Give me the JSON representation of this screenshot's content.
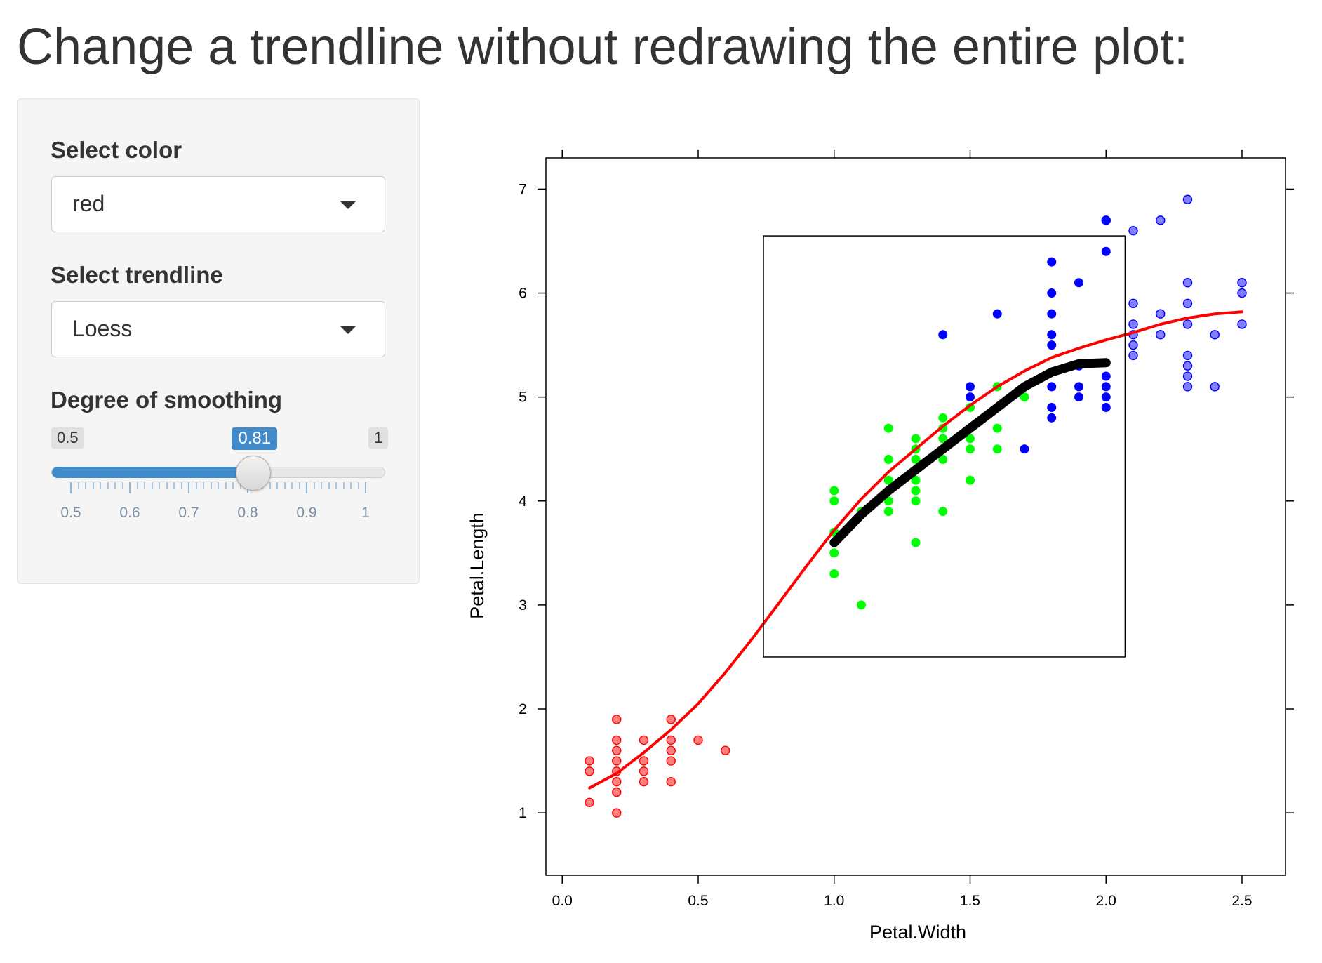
{
  "page": {
    "title": "Change a trendline without redrawing the entire plot:"
  },
  "controls": {
    "color_label": "Select color",
    "color_value": "red",
    "trend_label": "Select trendline",
    "trend_value": "Loess",
    "smoothing_label": "Degree of smoothing",
    "slider": {
      "min_label": "0.5",
      "max_label": "1",
      "value_label": "0.81",
      "min": 0.5,
      "max": 1,
      "value": 0.81,
      "tick_labels": [
        "0.5",
        "0.6",
        "0.7",
        "0.8",
        "0.9",
        "1"
      ],
      "accent_color": "#428bca"
    }
  },
  "chart_data": {
    "type": "scatter",
    "xlabel": "Petal.Width",
    "ylabel": "Petal.Length",
    "xlim": [
      -0.06,
      2.66
    ],
    "ylim": [
      0.4,
      7.3
    ],
    "x_ticks": [
      "0.0",
      "0.5",
      "1.0",
      "1.5",
      "2.0",
      "2.5"
    ],
    "y_ticks": [
      "1",
      "2",
      "3",
      "4",
      "5",
      "6",
      "7"
    ],
    "grid": false,
    "series": [
      {
        "color": "#ff0000",
        "style": "translucent-outlined",
        "points": [
          [
            0.1,
            1.5
          ],
          [
            0.1,
            1.4
          ],
          [
            0.1,
            1.1
          ],
          [
            0.2,
            1.9
          ],
          [
            0.2,
            1.7
          ],
          [
            0.2,
            1.6
          ],
          [
            0.2,
            1.5
          ],
          [
            0.2,
            1.4
          ],
          [
            0.2,
            1.3
          ],
          [
            0.2,
            1.2
          ],
          [
            0.2,
            1.0
          ],
          [
            0.3,
            1.7
          ],
          [
            0.3,
            1.5
          ],
          [
            0.3,
            1.4
          ],
          [
            0.3,
            1.3
          ],
          [
            0.4,
            1.9
          ],
          [
            0.4,
            1.7
          ],
          [
            0.4,
            1.6
          ],
          [
            0.4,
            1.5
          ],
          [
            0.4,
            1.3
          ],
          [
            0.5,
            1.7
          ],
          [
            0.6,
            1.6
          ]
        ]
      },
      {
        "color": "#00ff00",
        "style": "solid",
        "points": [
          [
            1.0,
            4.1
          ],
          [
            1.0,
            4.0
          ],
          [
            1.0,
            3.7
          ],
          [
            1.0,
            3.6
          ],
          [
            1.0,
            3.5
          ],
          [
            1.0,
            3.3
          ],
          [
            1.1,
            3.9
          ],
          [
            1.1,
            3.0
          ],
          [
            1.2,
            4.7
          ],
          [
            1.2,
            4.4
          ],
          [
            1.2,
            4.2
          ],
          [
            1.2,
            4.0
          ],
          [
            1.2,
            3.9
          ],
          [
            1.3,
            4.6
          ],
          [
            1.3,
            4.5
          ],
          [
            1.3,
            4.4
          ],
          [
            1.3,
            4.3
          ],
          [
            1.3,
            4.2
          ],
          [
            1.3,
            4.1
          ],
          [
            1.3,
            4.0
          ],
          [
            1.3,
            3.6
          ],
          [
            1.4,
            4.8
          ],
          [
            1.4,
            4.7
          ],
          [
            1.4,
            4.6
          ],
          [
            1.4,
            4.4
          ],
          [
            1.4,
            3.9
          ],
          [
            1.5,
            4.9
          ],
          [
            1.5,
            4.7
          ],
          [
            1.5,
            4.6
          ],
          [
            1.5,
            4.5
          ],
          [
            1.5,
            4.2
          ],
          [
            1.6,
            5.1
          ],
          [
            1.6,
            4.7
          ],
          [
            1.6,
            4.5
          ],
          [
            1.7,
            5.0
          ]
        ]
      },
      {
        "color": "#0000ff",
        "style": "solid",
        "points": [
          [
            1.4,
            5.6
          ],
          [
            1.5,
            5.1
          ],
          [
            1.5,
            5.0
          ],
          [
            1.6,
            5.8
          ],
          [
            1.7,
            4.5
          ],
          [
            1.8,
            6.3
          ],
          [
            1.8,
            6.0
          ],
          [
            1.8,
            5.8
          ],
          [
            1.8,
            5.6
          ],
          [
            1.8,
            5.5
          ],
          [
            1.8,
            5.1
          ],
          [
            1.8,
            4.9
          ],
          [
            1.8,
            4.8
          ],
          [
            1.9,
            6.1
          ],
          [
            1.9,
            5.3
          ],
          [
            1.9,
            5.1
          ],
          [
            1.9,
            5.0
          ],
          [
            2.0,
            6.7
          ],
          [
            2.0,
            6.4
          ],
          [
            2.0,
            5.2
          ],
          [
            2.0,
            5.1
          ],
          [
            2.0,
            5.0
          ],
          [
            2.0,
            4.9
          ]
        ]
      },
      {
        "color": "#0000ff",
        "style": "translucent-outlined",
        "points": [
          [
            2.0,
            6.7
          ],
          [
            2.1,
            6.6
          ],
          [
            2.1,
            5.9
          ],
          [
            2.1,
            5.7
          ],
          [
            2.1,
            5.6
          ],
          [
            2.1,
            5.5
          ],
          [
            2.1,
            5.4
          ],
          [
            2.2,
            6.7
          ],
          [
            2.2,
            5.8
          ],
          [
            2.2,
            5.6
          ],
          [
            2.3,
            6.9
          ],
          [
            2.3,
            6.1
          ],
          [
            2.3,
            5.9
          ],
          [
            2.3,
            5.7
          ],
          [
            2.3,
            5.4
          ],
          [
            2.3,
            5.3
          ],
          [
            2.3,
            5.2
          ],
          [
            2.3,
            5.1
          ],
          [
            2.4,
            5.6
          ],
          [
            2.4,
            5.1
          ],
          [
            2.5,
            6.1
          ],
          [
            2.5,
            6.0
          ],
          [
            2.5,
            5.7
          ]
        ]
      }
    ],
    "trendlines": [
      {
        "color": "#ff0000",
        "points": [
          [
            0.1,
            1.24
          ],
          [
            0.2,
            1.38
          ],
          [
            0.3,
            1.58
          ],
          [
            0.4,
            1.8
          ],
          [
            0.5,
            2.05
          ],
          [
            0.6,
            2.35
          ],
          [
            0.7,
            2.68
          ],
          [
            0.8,
            3.03
          ],
          [
            0.9,
            3.38
          ],
          [
            1.0,
            3.72
          ],
          [
            1.1,
            4.02
          ],
          [
            1.2,
            4.28
          ],
          [
            1.3,
            4.5
          ],
          [
            1.4,
            4.72
          ],
          [
            1.5,
            4.92
          ],
          [
            1.6,
            5.1
          ],
          [
            1.7,
            5.25
          ],
          [
            1.8,
            5.38
          ],
          [
            1.9,
            5.47
          ],
          [
            2.0,
            5.55
          ],
          [
            2.1,
            5.62
          ],
          [
            2.2,
            5.7
          ],
          [
            2.3,
            5.76
          ],
          [
            2.4,
            5.8
          ],
          [
            2.5,
            5.82
          ]
        ]
      },
      {
        "color": "#000000",
        "points": [
          [
            1.0,
            3.6
          ],
          [
            1.1,
            3.87
          ],
          [
            1.2,
            4.1
          ],
          [
            1.3,
            4.3
          ],
          [
            1.4,
            4.5
          ],
          [
            1.5,
            4.7
          ],
          [
            1.6,
            4.9
          ],
          [
            1.7,
            5.1
          ],
          [
            1.8,
            5.24
          ],
          [
            1.9,
            5.32
          ],
          [
            2.0,
            5.33
          ]
        ]
      }
    ],
    "subset_box": {
      "x": [
        0.74,
        2.07
      ],
      "y": [
        2.5,
        6.55
      ]
    }
  }
}
